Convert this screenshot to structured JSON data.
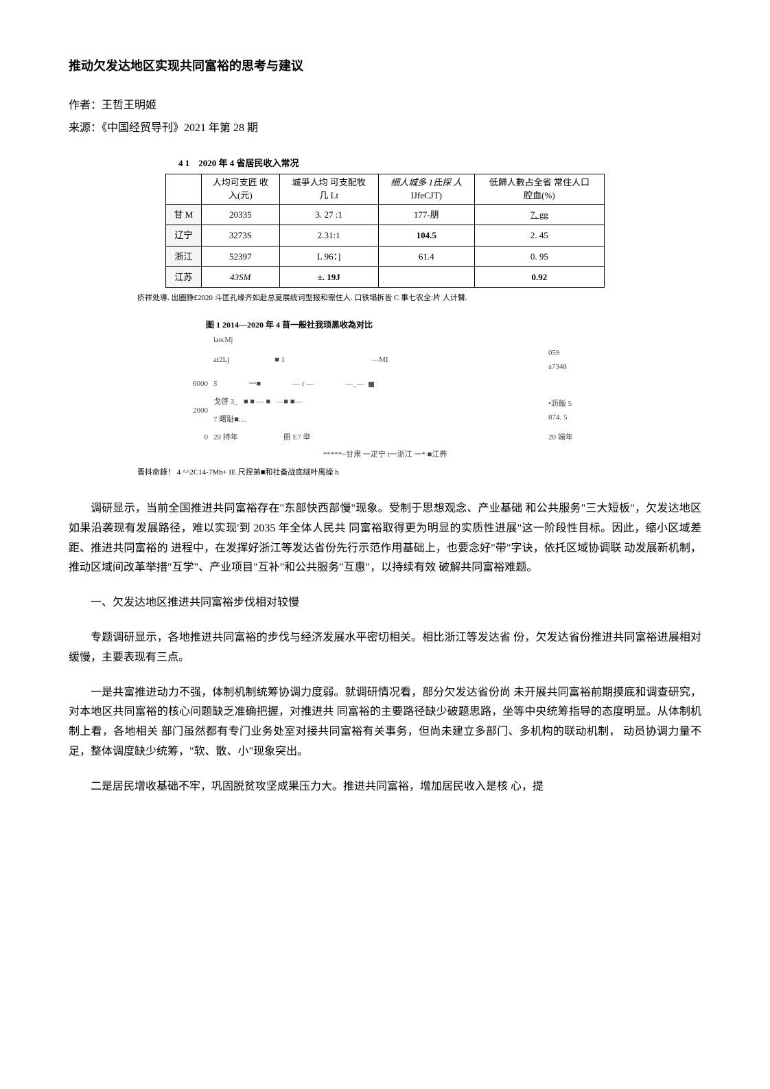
{
  "title": "推动欠发达地区实现共同富裕的思考与建议",
  "author_label": "作者：王哲王明姬",
  "source_label": "来源：《中国经贸导刊》2021 年第 28 期",
  "table": {
    "caption_prefix": "4 1",
    "caption_text": "2020 年 4 省居民收入常况",
    "columns": [
      {
        "line1": "人均可支匠 收",
        "line2": "入(元)"
      },
      {
        "line1": "城爭人均 可支配牧",
        "line2": "几 Lt"
      },
      {
        "line1": "细人城多 1氐探 人",
        "line2": "IJfeCJT)"
      },
      {
        "line1": "低歸人數占全省 常住人口",
        "line2": "腔血(%)"
      }
    ],
    "rows": [
      {
        "head": "甘 M",
        "cells": [
          "20335",
          "3. 27 :1",
          "177-朋",
          "7. gg"
        ],
        "underline_last": true
      },
      {
        "head": "辽宁",
        "cells": [
          "3273S",
          "2.31:1",
          "104.5",
          "2. 45"
        ],
        "bold_cell_idx": 2
      },
      {
        "head": "浙江",
        "cells": [
          "52397",
          "L 96：]",
          "61.4",
          "0. 95"
        ]
      },
      {
        "head": "江苏",
        "cells": [
          "43SM",
          "±. 19J",
          "",
          "0.92"
        ],
        "italic_cell_idx": 0,
        "bold_cells": [
          1,
          3
        ]
      }
    ],
    "note": "疥祥处導. 出圈錚£2020 斗匡孔缘齐如赴总夏展统诃型报和需住人. 口铁塌拆皆 C 事七农全:片 人计聲."
  },
  "chart": {
    "caption": "图 1 2014—2020 年 4 苜一般社我顼黑收為对比",
    "sub_label": "laocMj",
    "background_color": "#ffffff",
    "y_ticks": [
      "6000",
      "2000",
      "0"
    ],
    "top_left_frag": "at2Lj",
    "top_right_frags": [
      "—MI",
      "059",
      "a7348"
    ],
    "mid_left_frags": [
      "戈啓 3_",
      "7 曙耻■…"
    ],
    "mid_right_frags": [
      "•沥飯 5",
      "874. 5"
    ],
    "bottom_left": "20 持年",
    "bottom_mid": "冊 E7 举",
    "bottom_right": "20 端年",
    "legend": "*****~甘肃 一疋宁 t一浙江 一* ■江荞",
    "source": "晋抖命錄！ 4 ^^2C14-7Mb+ IE 尺捏弟■和社备战底絨叶禺操 h",
    "marker_color": "#555555",
    "marker_size": 8,
    "series_markers": [
      5,
      5
    ]
  },
  "paragraphs": [
    "调研显示，当前全国推进共同富裕存在\"东部快西部慢\"现象。受制于思想观念、产业基础 和公共服务\"三大短板\"，欠发达地区如果沿袭现有发展路径，难以实现'到 2035 年全体人民共 同富裕取得更为明显的实质性进展\"这一阶段性目标。因此，缩小区域差距、推进共同富裕的 进程中，在发挥好浙江等发达省份先行示范作用基础上，也要念好\"带\"字诀，依托区域协调联 动发展新机制，推动区域间改革举措\"互学\"、产业项目\"互补\"和公共服务\"互惠\"，以持续有效 破解共同富裕难题。",
    "一、欠发达地区推进共同富裕步伐相对较慢",
    "专题调研显示，各地推进共同富裕的步伐与经济发展水平密切相关。相比浙江等发达省 份，欠发达省份推进共同富裕进展相对缓慢，主要表现有三点。",
    "一是共富推进动力不强，体制机制统筹协调力度弱。就调研情况看，部分欠发达省份尚 未开展共同富裕前期摸底和调查研究，对本地区共同富裕的核心问题缺乏准确把握，对推进共 同富裕的主要路径缺少破题思路，坐等中央统筹指导的态度明显。从体制机制上看，各地相关 部门虽然都有专门业务处室对接共同富裕有关事务，但尚未建立多部门、多机构的联动机制， 动员协调力量不足，整体调度缺少统筹，\"软、散、小\"现象突出。",
    "二是居民增收基础不牢，巩固脱贫攻坚成果压力大。推进共同富裕，增加居民收入是核 心，提"
  ]
}
